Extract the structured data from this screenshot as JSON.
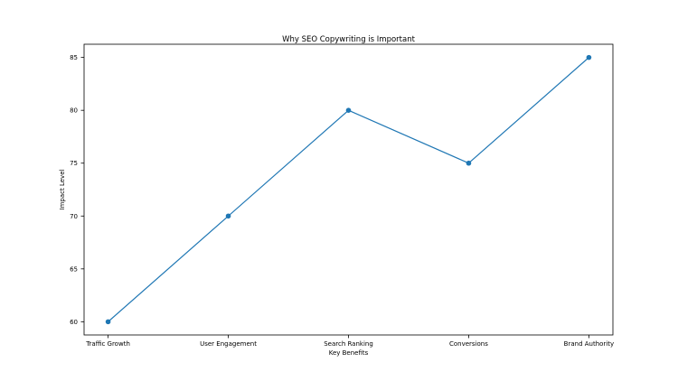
{
  "chart_data": {
    "type": "line",
    "title": "Why SEO Copywriting is Important",
    "xlabel": "Key Benefits",
    "ylabel": "Impact Level",
    "categories": [
      "Traffic Growth",
      "User Engagement",
      "Search Ranking",
      "Conversions",
      "Brand Authority"
    ],
    "values": [
      60,
      70,
      80,
      75,
      85
    ],
    "yticks": [
      60,
      65,
      70,
      75,
      80,
      85
    ],
    "ylim": [
      58.75,
      86.25
    ],
    "line_color": "#1f77b4",
    "marker": "circle",
    "grid": false,
    "legend": "none",
    "background_color": "#ffffff",
    "spine_color": "#000000"
  }
}
